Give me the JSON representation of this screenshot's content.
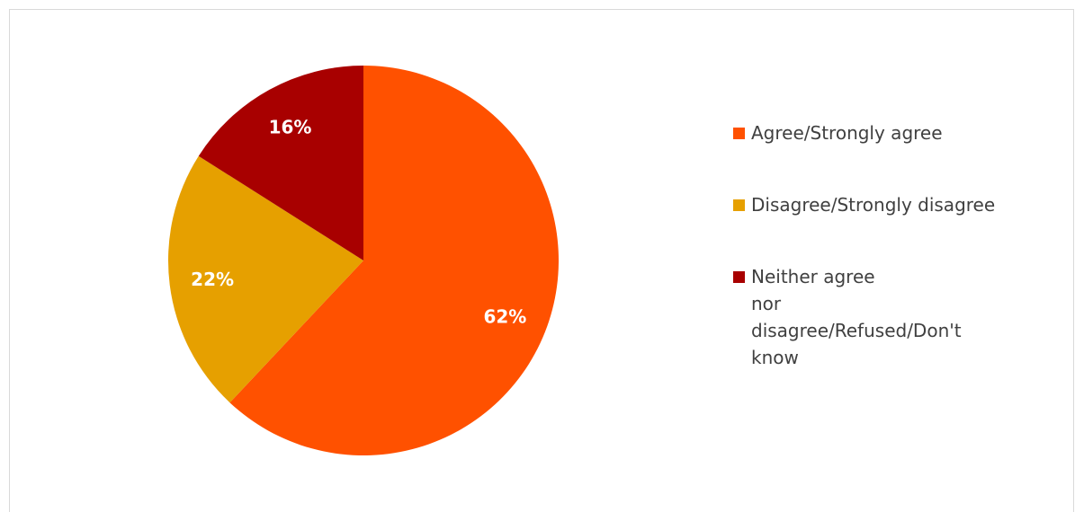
{
  "chart_data": {
    "type": "pie",
    "categories": [
      "Agree/Strongly agree",
      "Disagree/Strongly disagree",
      "Neither agree nor disagree/Refused/Don't know"
    ],
    "values": [
      62,
      22,
      16
    ],
    "value_labels": [
      "62%",
      "22%",
      "16%"
    ],
    "colors": [
      "#ff5100",
      "#e6a000",
      "#a80000"
    ],
    "start_angle_deg": 0,
    "direction": "clockwise",
    "legend_position": "right"
  }
}
